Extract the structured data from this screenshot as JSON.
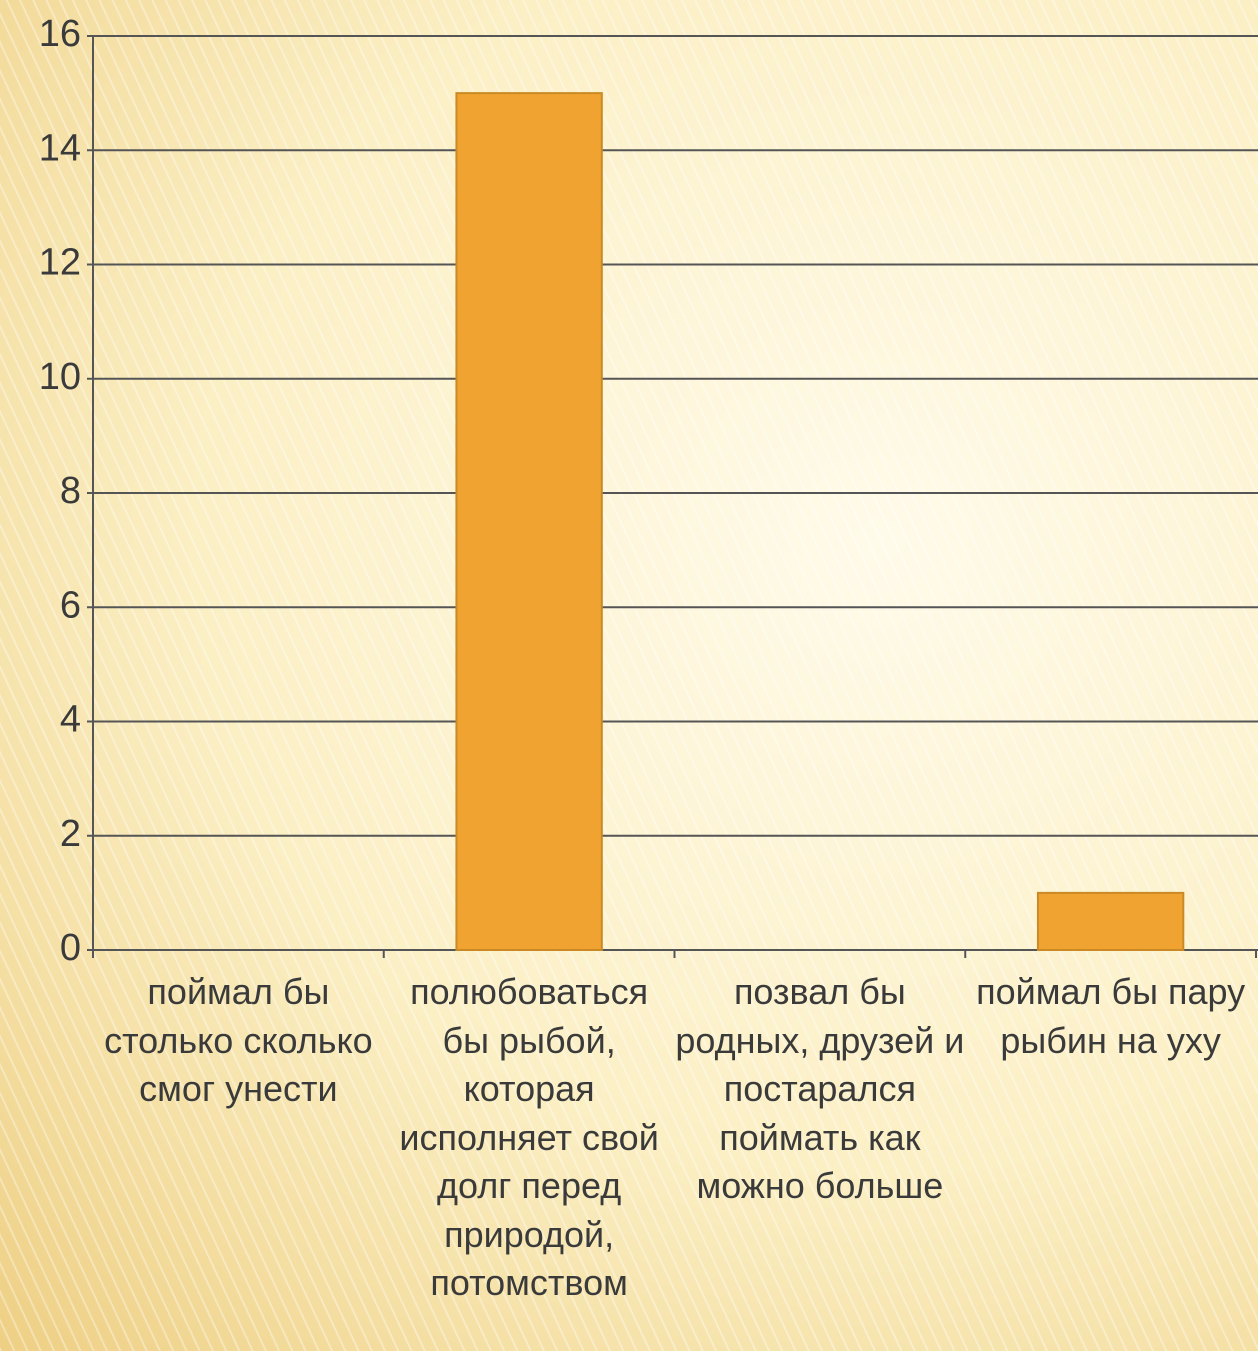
{
  "chart_data": {
    "type": "bar",
    "categories": [
      "поймал бы столько сколько смог унести",
      "полюбоваться бы рыбой, которая исполняет свой долг перед природой, потомством",
      "позвал бы родных, друзей и постарался поймать как можно больше",
      "поймал бы пару рыбин на уху"
    ],
    "values": [
      0,
      15,
      0,
      1
    ],
    "color": "#f0a330",
    "ylim": [
      0,
      16
    ],
    "yticks": [
      0,
      2,
      4,
      6,
      8,
      10,
      12,
      14,
      16
    ],
    "grid": true
  }
}
